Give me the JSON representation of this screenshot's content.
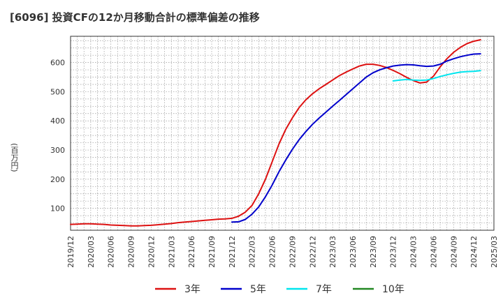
{
  "title": "[6096]  投資CFの12か月移動合計の標準偏差の推移",
  "colors": {
    "background": "#ffffff",
    "grid": "#999999",
    "axis": "#333333"
  },
  "chart_data": {
    "type": "line",
    "title": "[6096]  投資CFの12か月移動合計の標準偏差の推移",
    "xlabel": "",
    "ylabel": "(百万円)",
    "x_range": [
      "2019-12",
      "2025-03"
    ],
    "ylim": [
      25,
      690
    ],
    "yticks": [
      100,
      200,
      300,
      400,
      500,
      600
    ],
    "xticks": [
      "2019/12",
      "2020/03",
      "2020/06",
      "2020/09",
      "2020/12",
      "2021/03",
      "2021/06",
      "2021/09",
      "2021/12",
      "2022/03",
      "2022/06",
      "2022/09",
      "2022/12",
      "2023/03",
      "2023/06",
      "2023/09",
      "2023/12",
      "2024/03",
      "2024/06",
      "2024/09",
      "2024/12",
      "2025/03"
    ],
    "grid": true,
    "legend_position": "bottom",
    "series": [
      {
        "name": "3年",
        "color": "#dd1111",
        "points": [
          [
            "2019-12",
            45
          ],
          [
            "2020-01",
            46
          ],
          [
            "2020-02",
            47
          ],
          [
            "2020-03",
            47
          ],
          [
            "2020-04",
            46
          ],
          [
            "2020-05",
            45
          ],
          [
            "2020-06",
            43
          ],
          [
            "2020-07",
            42
          ],
          [
            "2020-08",
            41
          ],
          [
            "2020-09",
            40
          ],
          [
            "2020-10",
            40
          ],
          [
            "2020-11",
            41
          ],
          [
            "2020-12",
            42
          ],
          [
            "2021-01",
            44
          ],
          [
            "2021-02",
            46
          ],
          [
            "2021-03",
            48
          ],
          [
            "2021-04",
            51
          ],
          [
            "2021-05",
            53
          ],
          [
            "2021-06",
            55
          ],
          [
            "2021-07",
            57
          ],
          [
            "2021-08",
            59
          ],
          [
            "2021-09",
            61
          ],
          [
            "2021-10",
            63
          ],
          [
            "2021-11",
            64
          ],
          [
            "2021-12",
            66
          ],
          [
            "2022-01",
            73
          ],
          [
            "2022-02",
            87
          ],
          [
            "2022-03",
            110
          ],
          [
            "2022-04",
            150
          ],
          [
            "2022-05",
            200
          ],
          [
            "2022-06",
            260
          ],
          [
            "2022-07",
            320
          ],
          [
            "2022-08",
            370
          ],
          [
            "2022-09",
            410
          ],
          [
            "2022-10",
            445
          ],
          [
            "2022-11",
            472
          ],
          [
            "2022-12",
            493
          ],
          [
            "2023-01",
            510
          ],
          [
            "2023-02",
            525
          ],
          [
            "2023-03",
            540
          ],
          [
            "2023-04",
            555
          ],
          [
            "2023-05",
            567
          ],
          [
            "2023-06",
            578
          ],
          [
            "2023-07",
            588
          ],
          [
            "2023-08",
            594
          ],
          [
            "2023-09",
            594
          ],
          [
            "2023-10",
            590
          ],
          [
            "2023-11",
            583
          ],
          [
            "2023-12",
            573
          ],
          [
            "2024-01",
            562
          ],
          [
            "2024-02",
            549
          ],
          [
            "2024-03",
            538
          ],
          [
            "2024-04",
            530
          ],
          [
            "2024-05",
            533
          ],
          [
            "2024-06",
            553
          ],
          [
            "2024-07",
            585
          ],
          [
            "2024-08",
            613
          ],
          [
            "2024-09",
            635
          ],
          [
            "2024-10",
            652
          ],
          [
            "2024-11",
            665
          ],
          [
            "2024-12",
            673
          ],
          [
            "2025-01",
            678
          ]
        ]
      },
      {
        "name": "5年",
        "color": "#0000cc",
        "points": [
          [
            "2021-12",
            53
          ],
          [
            "2022-01",
            54
          ],
          [
            "2022-02",
            62
          ],
          [
            "2022-03",
            80
          ],
          [
            "2022-04",
            105
          ],
          [
            "2022-05",
            140
          ],
          [
            "2022-06",
            180
          ],
          [
            "2022-07",
            225
          ],
          [
            "2022-08",
            265
          ],
          [
            "2022-09",
            302
          ],
          [
            "2022-10",
            335
          ],
          [
            "2022-11",
            363
          ],
          [
            "2022-12",
            388
          ],
          [
            "2023-01",
            410
          ],
          [
            "2023-02",
            430
          ],
          [
            "2023-03",
            450
          ],
          [
            "2023-04",
            470
          ],
          [
            "2023-05",
            490
          ],
          [
            "2023-06",
            510
          ],
          [
            "2023-07",
            530
          ],
          [
            "2023-08",
            550
          ],
          [
            "2023-09",
            565
          ],
          [
            "2023-10",
            575
          ],
          [
            "2023-11",
            582
          ],
          [
            "2023-12",
            588
          ],
          [
            "2024-01",
            591
          ],
          [
            "2024-02",
            593
          ],
          [
            "2024-03",
            592
          ],
          [
            "2024-04",
            589
          ],
          [
            "2024-05",
            587
          ],
          [
            "2024-06",
            588
          ],
          [
            "2024-07",
            594
          ],
          [
            "2024-08",
            605
          ],
          [
            "2024-09",
            613
          ],
          [
            "2024-10",
            620
          ],
          [
            "2024-11",
            625
          ],
          [
            "2024-12",
            629
          ],
          [
            "2025-01",
            630
          ]
        ]
      },
      {
        "name": "7年",
        "color": "#00e5ee",
        "points": [
          [
            "2023-12",
            537
          ],
          [
            "2024-01",
            540
          ],
          [
            "2024-02",
            542
          ],
          [
            "2024-03",
            540
          ],
          [
            "2024-04",
            539
          ],
          [
            "2024-05",
            540
          ],
          [
            "2024-06",
            545
          ],
          [
            "2024-07",
            552
          ],
          [
            "2024-08",
            558
          ],
          [
            "2024-09",
            563
          ],
          [
            "2024-10",
            567
          ],
          [
            "2024-11",
            569
          ],
          [
            "2024-12",
            570
          ],
          [
            "2025-01",
            572
          ]
        ]
      },
      {
        "name": "10年",
        "color": "#228822",
        "points": []
      }
    ]
  }
}
